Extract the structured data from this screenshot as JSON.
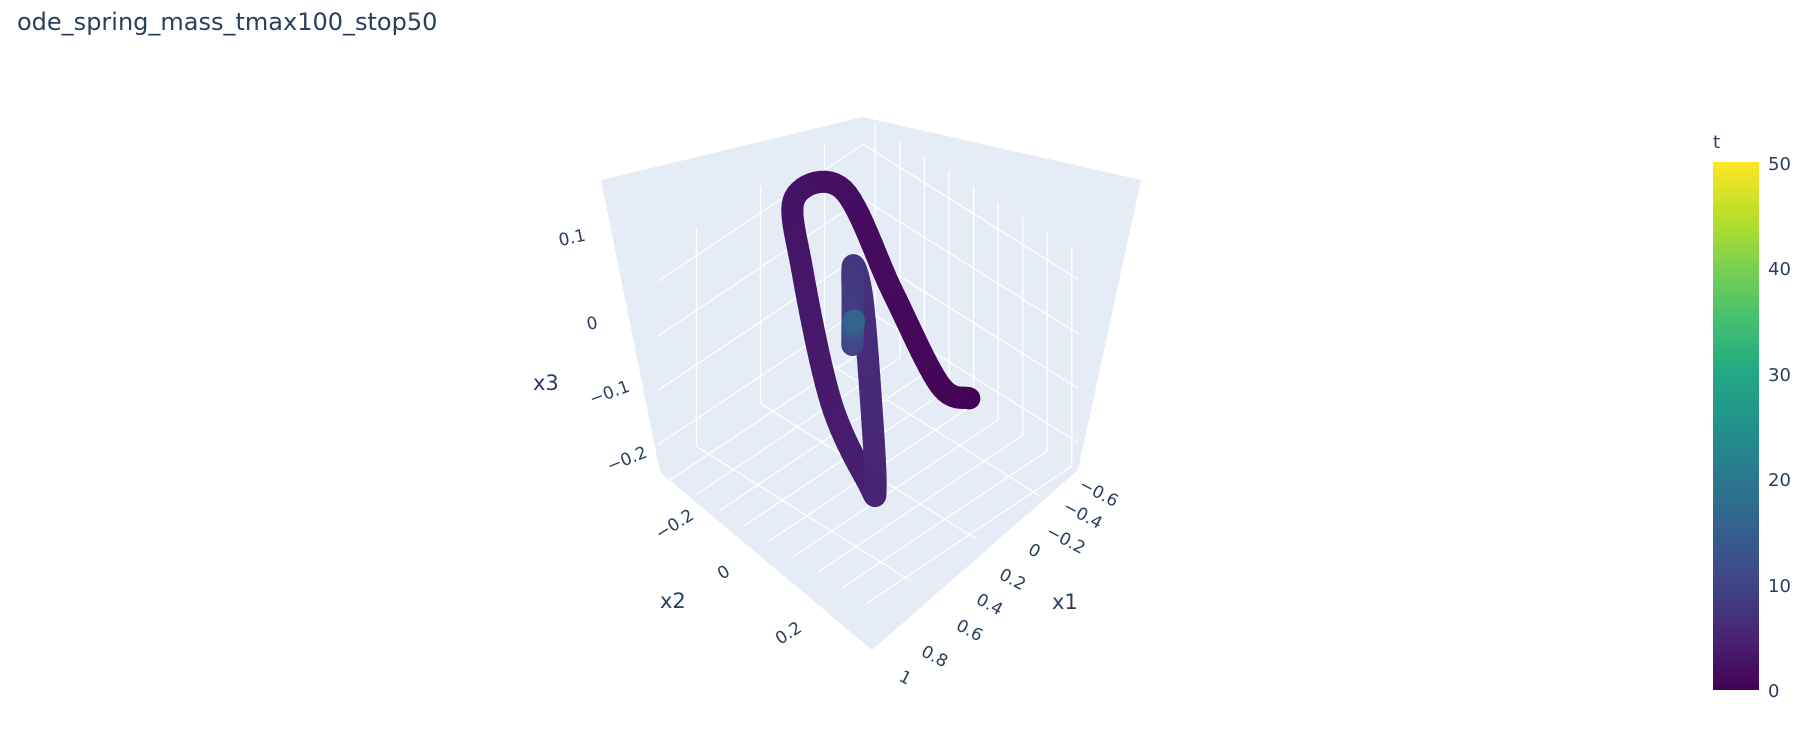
{
  "chart_data": {
    "type": "scatter3d-line",
    "title": "ode_spring_mass_tmax100_stop50",
    "axes": {
      "x1": {
        "label": "x1",
        "range": [
          -0.7,
          1.05
        ],
        "ticks": [
          "−0.6",
          "−0.4",
          "−0.2",
          "0",
          "0.2",
          "0.4",
          "0.6",
          "0.8",
          "1"
        ]
      },
      "x2": {
        "label": "x2",
        "range": [
          -0.32,
          0.32
        ],
        "ticks": [
          "−0.2",
          "0",
          "0.2"
        ]
      },
      "x3": {
        "label": "x3",
        "range": [
          -0.25,
          0.15
        ],
        "ticks": [
          "0.1",
          "0",
          "−0.1",
          "−0.2"
        ]
      }
    },
    "colorbar": {
      "title": "t",
      "colorscale": "Viridis",
      "range": [
        0,
        50
      ],
      "ticks": [
        "0",
        "10",
        "20",
        "30",
        "40",
        "50"
      ]
    },
    "trajectory": {
      "t_range": [
        0,
        50
      ],
      "points": [
        {
          "t": 0,
          "x1": 1.0,
          "x2": 0.0,
          "x3": 0.0
        },
        {
          "t": 0.6,
          "x1": 0.55,
          "x2": -0.08,
          "x3": -0.07
        },
        {
          "t": 1.2,
          "x1": -0.2,
          "x2": -0.22,
          "x3": -0.06
        },
        {
          "t": 1.8,
          "x1": -0.6,
          "x2": -0.22,
          "x3": 0.07
        },
        {
          "t": 2.4,
          "x1": -0.55,
          "x2": -0.05,
          "x3": 0.13
        },
        {
          "t": 3.0,
          "x1": -0.1,
          "x2": 0.1,
          "x3": 0.12
        },
        {
          "t": 3.6,
          "x1": 0.45,
          "x2": 0.22,
          "x3": 0.0
        },
        {
          "t": 4.2,
          "x1": 0.7,
          "x2": 0.2,
          "x3": -0.12
        },
        {
          "t": 4.8,
          "x1": 0.55,
          "x2": 0.12,
          "x3": -0.18
        },
        {
          "t": 5.6,
          "x1": 0.2,
          "x2": 0.0,
          "x3": -0.12
        },
        {
          "t": 6.5,
          "x1": 0.0,
          "x2": -0.05,
          "x3": 0.02
        },
        {
          "t": 7.5,
          "x1": -0.05,
          "x2": -0.04,
          "x3": 0.08
        },
        {
          "t": 8.5,
          "x1": 0.05,
          "x2": 0.0,
          "x3": 0.04
        },
        {
          "t": 9.5,
          "x1": 0.1,
          "x2": 0.02,
          "x3": -0.02
        },
        {
          "t": 12,
          "x1": 0.08,
          "x2": 0.01,
          "x3": 0.0
        },
        {
          "t": 16,
          "x1": 0.06,
          "x2": 0.0,
          "x3": 0.01
        }
      ]
    },
    "grid": true,
    "legend": "colorbar-right"
  }
}
